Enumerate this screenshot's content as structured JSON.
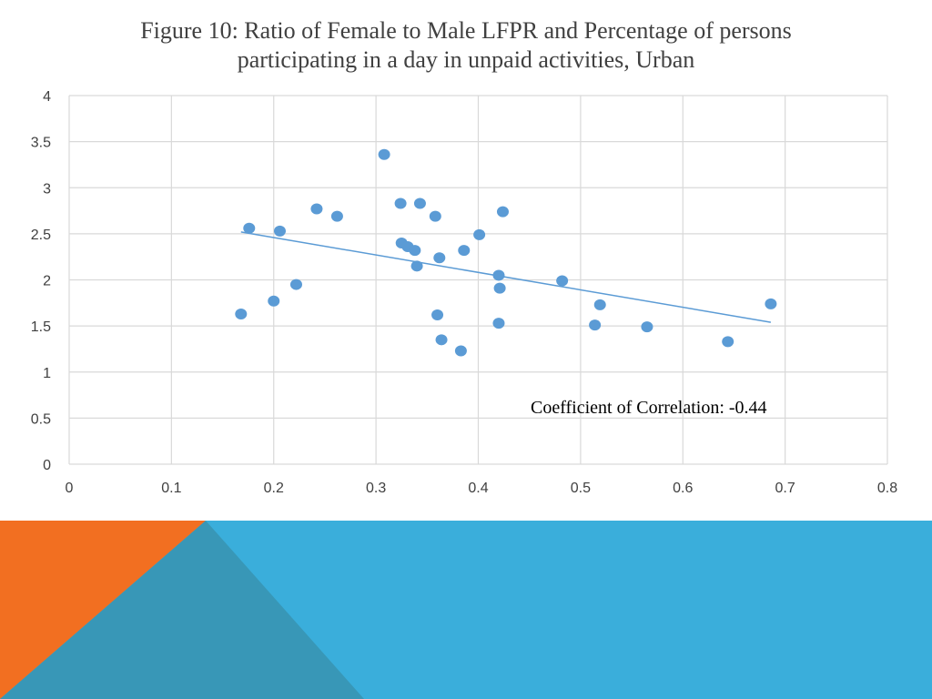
{
  "colors": {
    "background": "#ffffff",
    "gridline": "#d9d9d9",
    "point": "#5b9bd5",
    "trendline": "#5b9bd5",
    "text": "#404040",
    "footer_blue": "#3aaedb",
    "footer_teal": "#3897b7",
    "footer_orange": "#f26f21"
  },
  "chart_data": {
    "type": "scatter",
    "title": "Figure 10: Ratio of Female to Male LFPR and Percentage of persons participating in a day in unpaid activities, Urban",
    "title_lines": [
      "Figure 10: Ratio of Female to Male LFPR and Percentage of persons",
      "participating in a day in unpaid activities, Urban"
    ],
    "xlabel": "",
    "ylabel": "",
    "xlim": [
      0,
      0.8
    ],
    "ylim": [
      0,
      4
    ],
    "x_ticks": [
      0,
      0.1,
      0.2,
      0.3,
      0.4,
      0.5,
      0.6,
      0.7,
      0.8
    ],
    "y_ticks": [
      0,
      0.5,
      1,
      1.5,
      2,
      2.5,
      3,
      3.5,
      4
    ],
    "x_tick_labels": [
      "0",
      "0.1",
      "0.2",
      "0.3",
      "0.4",
      "0.5",
      "0.6",
      "0.7",
      "0.8"
    ],
    "y_tick_labels": [
      "0",
      "0.5",
      "1",
      "1.5",
      "2",
      "2.5",
      "3",
      "3.5",
      "4"
    ],
    "grid": true,
    "legend": "none",
    "points": [
      {
        "x": 0.168,
        "y": 1.63
      },
      {
        "x": 0.176,
        "y": 2.56
      },
      {
        "x": 0.2,
        "y": 1.77
      },
      {
        "x": 0.206,
        "y": 2.53
      },
      {
        "x": 0.222,
        "y": 1.95
      },
      {
        "x": 0.242,
        "y": 2.77
      },
      {
        "x": 0.262,
        "y": 2.69
      },
      {
        "x": 0.308,
        "y": 3.36
      },
      {
        "x": 0.324,
        "y": 2.83
      },
      {
        "x": 0.325,
        "y": 2.4
      },
      {
        "x": 0.331,
        "y": 2.36
      },
      {
        "x": 0.338,
        "y": 2.32
      },
      {
        "x": 0.34,
        "y": 2.15
      },
      {
        "x": 0.343,
        "y": 2.83
      },
      {
        "x": 0.358,
        "y": 2.69
      },
      {
        "x": 0.36,
        "y": 1.62
      },
      {
        "x": 0.362,
        "y": 2.24
      },
      {
        "x": 0.364,
        "y": 1.35
      },
      {
        "x": 0.383,
        "y": 1.23
      },
      {
        "x": 0.386,
        "y": 2.32
      },
      {
        "x": 0.401,
        "y": 2.49
      },
      {
        "x": 0.42,
        "y": 2.05
      },
      {
        "x": 0.42,
        "y": 1.53
      },
      {
        "x": 0.421,
        "y": 1.91
      },
      {
        "x": 0.424,
        "y": 2.74
      },
      {
        "x": 0.482,
        "y": 1.99
      },
      {
        "x": 0.514,
        "y": 1.51
      },
      {
        "x": 0.519,
        "y": 1.73
      },
      {
        "x": 0.565,
        "y": 1.49
      },
      {
        "x": 0.644,
        "y": 1.33
      },
      {
        "x": 0.686,
        "y": 1.74
      }
    ],
    "trendline": {
      "x1": 0.168,
      "y1": 2.52,
      "x2": 0.686,
      "y2": 1.54
    },
    "annotation": "Coefficient of Correlation: -0.44"
  }
}
